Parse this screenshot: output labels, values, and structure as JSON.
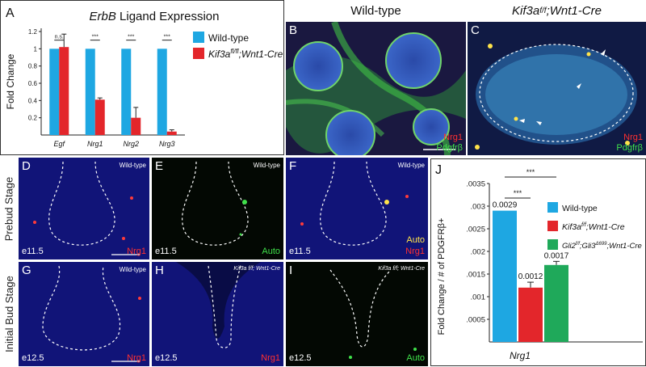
{
  "panel_a": {
    "label": "A",
    "title_italic": "ErbB",
    "title_rest": " Ligand Expression",
    "chart_data": {
      "type": "bar",
      "categories": [
        "Egf",
        "Nrg1",
        "Nrg2",
        "Nrg3"
      ],
      "series": [
        {
          "name": "Wild-type",
          "values": [
            1.0,
            1.0,
            1.0,
            1.0
          ],
          "errors": [
            0,
            0,
            0,
            0
          ],
          "color": "#1ea7e2"
        },
        {
          "name": "Kif3a fl/fl; Wnt1-Cre",
          "values": [
            1.02,
            0.41,
            0.2,
            0.04
          ],
          "errors": [
            0.15,
            0.02,
            0.12,
            0.02
          ],
          "color": "#e3262b"
        }
      ],
      "significance": [
        "n.s.",
        "***",
        "***",
        "***"
      ],
      "ylabel": "Fold Change",
      "yticks": [
        "1.2",
        "1",
        "0.8",
        "0.6",
        "0.4",
        "0.2"
      ],
      "ylim": [
        0,
        1.2
      ]
    },
    "legend": [
      {
        "text": "Wild-type",
        "color": "#1ea7e2"
      },
      {
        "main": "Kif3a",
        "sup": "fl/fl",
        "rest": ";Wnt1-Cre",
        "color": "#e3262b"
      }
    ]
  },
  "headers": {
    "wild_type": "Wild-type",
    "mutant_main": "Kif3a",
    "mutant_sup": "f/f",
    "mutant_rest": ";Wnt1-Cre"
  },
  "panel_b": {
    "label": "B",
    "marker1": "Nrg1",
    "marker2": "Pdgfrβ"
  },
  "panel_c": {
    "label": "C",
    "marker1": "Nrg1",
    "marker2": "Pdgfrβ"
  },
  "stages": {
    "prebud": "Prebud Stage",
    "initial_bud": "Initial Bud Stage"
  },
  "panel_d": {
    "label": "D",
    "genotype": "Wild-type",
    "age": "e11.5",
    "marker": "Nrg1"
  },
  "panel_e": {
    "label": "E",
    "genotype": "Wild-type",
    "age": "e11.5",
    "marker": "Auto"
  },
  "panel_f": {
    "label": "F",
    "genotype": "Wild-type",
    "age": "e11.5",
    "marker_top": "Auto",
    "marker": "Nrg1"
  },
  "panel_g": {
    "label": "G",
    "genotype": "Wild-type",
    "age": "e12.5",
    "marker": "Nrg1"
  },
  "panel_h": {
    "label": "H",
    "genotype": "Kif3a f/f; Wnt1-Cre",
    "age": "e12.5",
    "marker": "Nrg1"
  },
  "panel_i": {
    "label": "I",
    "genotype": "Kif3a f/f; Wnt1-Cre",
    "age": "e12.5",
    "marker": "Auto"
  },
  "panel_j": {
    "label": "J",
    "chart_data": {
      "type": "bar",
      "categories": [
        "Wild-type",
        "Kif3a fl/fl; Wnt1-Cre",
        "Gli2 fl/fl; Gli3 Δ699; Wnt1-Cre"
      ],
      "values": [
        0.0029,
        0.0012,
        0.0017
      ],
      "errors": [
        0,
        0.00012,
        8e-05
      ],
      "value_labels": [
        "0.0029",
        "0.0012",
        "0.0017"
      ],
      "colors": [
        "#1ea7e2",
        "#e3262b",
        "#1fa95a"
      ],
      "significance": [
        "***",
        "***"
      ],
      "ylabel": "Fold Change / # of PDGFRβ+",
      "xlabel": "Nrg1",
      "yticks": [
        ".0035",
        ".003",
        ".0025",
        ".002",
        ".0015",
        ".001",
        ".0005"
      ],
      "ylim": [
        0,
        0.0035
      ]
    },
    "legend": [
      {
        "text": "Wild-type",
        "color": "#1ea7e2"
      },
      {
        "main": "Kif3a",
        "sup": "f/f",
        "rest": ";Wnt1-Cre",
        "color": "#e3262b"
      },
      {
        "g1": "Gli2",
        "s1": "f/f",
        "g2": ";Gli3",
        "s2": "Δ699",
        "rest": ";Wnt1-Cre",
        "color": "#1fa95a"
      }
    ]
  }
}
